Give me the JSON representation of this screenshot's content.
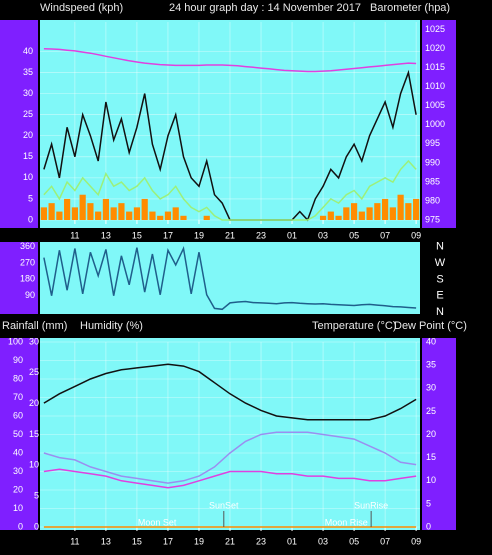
{
  "chart_data": [
    {
      "type": "line",
      "title": "24 hour graph day : 14 November 2017",
      "y_label": "Windspeed (kph)",
      "y2_label": "Barometer (hpa)",
      "x": [
        0,
        0.5,
        1,
        1.5,
        2,
        2.5,
        3,
        3.5,
        4,
        4.5,
        5,
        5.5,
        6,
        6.5,
        7,
        7.5,
        8,
        8.5,
        9,
        9.5,
        10,
        10.5,
        11,
        11.5,
        12,
        12.5,
        13,
        13.5,
        14,
        14.5,
        15,
        15.5,
        16,
        16.5,
        17,
        17.5,
        18,
        18.5,
        19,
        19.5,
        20,
        20.5,
        21,
        21.5,
        22,
        22.5,
        23,
        23.5,
        24
      ],
      "xlim": [
        -0.25,
        24.25
      ],
      "xticks": [
        {
          "value": 2,
          "label": "11"
        },
        {
          "value": 4,
          "label": "13"
        },
        {
          "value": 6,
          "label": "15"
        },
        {
          "value": 8,
          "label": "17"
        },
        {
          "value": 10,
          "label": "19"
        },
        {
          "value": 12,
          "label": "21"
        },
        {
          "value": 14,
          "label": "23"
        },
        {
          "value": 16,
          "label": "01"
        },
        {
          "value": 18,
          "label": "03"
        },
        {
          "value": 20,
          "label": "05"
        },
        {
          "value": 22,
          "label": "07"
        },
        {
          "value": 24,
          "label": "09"
        }
      ],
      "ylim": [
        0,
        47
      ],
      "yticks": [
        0,
        5,
        10,
        15,
        20,
        25,
        30,
        35,
        40
      ],
      "y2lim": [
        975,
        1027
      ],
      "y2ticks": [
        975,
        980,
        985,
        990,
        995,
        1000,
        1005,
        1010,
        1015,
        1020,
        1025
      ],
      "grid": true,
      "series": [
        {
          "type": "bar",
          "color": "#ff8c00",
          "values": [
            3,
            4,
            2,
            5,
            3,
            6,
            4,
            2,
            5,
            3,
            4,
            2,
            3,
            5,
            2,
            1,
            2,
            3,
            1,
            0,
            0,
            1,
            0,
            0,
            0,
            0,
            0,
            0,
            0,
            0,
            0,
            0,
            0,
            0,
            0,
            0,
            1,
            2,
            1,
            3,
            4,
            2,
            3,
            4,
            5,
            3,
            6,
            4,
            5
          ]
        },
        {
          "type": "line",
          "color": "#111111",
          "values": [
            12,
            18,
            10,
            22,
            15,
            25,
            20,
            14,
            28,
            19,
            24,
            16,
            22,
            30,
            18,
            12,
            20,
            25,
            15,
            10,
            8,
            14,
            6,
            4,
            0,
            0,
            0,
            0,
            0,
            0,
            0,
            0,
            0,
            2,
            0,
            5,
            8,
            12,
            10,
            15,
            18,
            14,
            20,
            24,
            28,
            22,
            30,
            35,
            25
          ]
        },
        {
          "type": "line",
          "color": "#9cf07a",
          "values": [
            6,
            8,
            5,
            9,
            7,
            10,
            8,
            6,
            11,
            8,
            9,
            7,
            8,
            10,
            7,
            5,
            6,
            8,
            5,
            3,
            2,
            3,
            1,
            0,
            0,
            0,
            0,
            0,
            0,
            0,
            0,
            0,
            0,
            0,
            0,
            1,
            3,
            5,
            4,
            6,
            7,
            5,
            8,
            9,
            10,
            9,
            12,
            14,
            12
          ]
        },
        {
          "type": "line",
          "color": "#e040e0",
          "axis": "y2",
          "values": [
            1020,
            1019.9,
            1019.8,
            1019.6,
            1019.4,
            1019.1,
            1018.8,
            1018.4,
            1018,
            1017.6,
            1017.2,
            1016.8,
            1016.5,
            1016.2,
            1016,
            1015.8,
            1015.7,
            1015.6,
            1015.6,
            1015.6,
            1015.6,
            1015.7,
            1015.7,
            1015.7,
            1015.6,
            1015.5,
            1015.3,
            1015.1,
            1014.9,
            1014.7,
            1014.5,
            1014.3,
            1014.2,
            1014.1,
            1014,
            1014,
            1014.1,
            1014.2,
            1014.4,
            1014.6,
            1014.8,
            1015,
            1015.2,
            1015.4,
            1015.6,
            1015.8,
            1016,
            1016.2,
            1016.1
          ]
        }
      ]
    },
    {
      "type": "line",
      "x": [
        0,
        0.5,
        1,
        1.5,
        2,
        2.5,
        3,
        3.5,
        4,
        4.5,
        5,
        5.5,
        6,
        6.5,
        7,
        7.5,
        8,
        8.5,
        9,
        9.5,
        10,
        10.5,
        11,
        11.5,
        12,
        12.5,
        13,
        13.5,
        14,
        14.5,
        15,
        15.5,
        16,
        16.5,
        17,
        17.5,
        18,
        18.5,
        19,
        19.5,
        20,
        20.5,
        21,
        21.5,
        22,
        22.5,
        23,
        23.5,
        24
      ],
      "xlim": [
        -0.25,
        24.25
      ],
      "ylim": [
        0,
        375
      ],
      "yticks": [
        90,
        180,
        270,
        360
      ],
      "y2lim": [
        0,
        375
      ],
      "y2ticks": [
        {
          "value": 360,
          "label": "N"
        },
        {
          "value": 270,
          "label": "W"
        },
        {
          "value": 180,
          "label": "S"
        },
        {
          "value": 90,
          "label": "E"
        },
        {
          "value": 0,
          "label": "N"
        }
      ],
      "series": [
        {
          "type": "line",
          "color": "#1f5f8b",
          "values": [
            300,
            90,
            340,
            120,
            350,
            100,
            330,
            200,
            345,
            90,
            310,
            150,
            355,
            110,
            320,
            95,
            340,
            260,
            350,
            100,
            330,
            95,
            20,
            15,
            50,
            55,
            58,
            52,
            50,
            48,
            45,
            50,
            52,
            48,
            46,
            44,
            45,
            42,
            40,
            38,
            36,
            40,
            42,
            38,
            35,
            30,
            28,
            25,
            22
          ]
        }
      ]
    },
    {
      "type": "line",
      "y3_label": "Rainfall (mm)",
      "y_label": "Humidity (%)",
      "y2_label": "Temperature (°C)",
      "y2_label_2": "Dew Point (°C)",
      "x": [
        0,
        1,
        2,
        3,
        4,
        5,
        6,
        7,
        8,
        9,
        10,
        11,
        12,
        13,
        14,
        15,
        16,
        17,
        18,
        19,
        20,
        21,
        22,
        23,
        24
      ],
      "xlim": [
        -0.25,
        24.25
      ],
      "xticks": [
        {
          "value": 2,
          "label": "11"
        },
        {
          "value": 4,
          "label": "13"
        },
        {
          "value": 6,
          "label": "15"
        },
        {
          "value": 8,
          "label": "17"
        },
        {
          "value": 10,
          "label": "19"
        },
        {
          "value": 12,
          "label": "21"
        },
        {
          "value": 14,
          "label": "23"
        },
        {
          "value": 16,
          "label": "01"
        },
        {
          "value": 18,
          "label": "03"
        },
        {
          "value": 20,
          "label": "05"
        },
        {
          "value": 22,
          "label": "07"
        },
        {
          "value": 24,
          "label": "09"
        }
      ],
      "ylim": [
        0,
        100
      ],
      "yticks": [
        0,
        10,
        20,
        30,
        40,
        50,
        60,
        70,
        80,
        90,
        100
      ],
      "y2lim": [
        0,
        40
      ],
      "y2ticks": [
        0,
        5,
        10,
        15,
        20,
        25,
        30,
        35,
        40
      ],
      "y3lim": [
        0,
        30
      ],
      "y3ticks": [
        0,
        5,
        10,
        15,
        20,
        25,
        30
      ],
      "y3tick_color": "#ff2020",
      "grid": true,
      "series": [
        {
          "type": "line",
          "color": "#ff8c00",
          "axis": "y3",
          "values": [
            0,
            0,
            0,
            0,
            0,
            0,
            0,
            0,
            0,
            0,
            0,
            0,
            0,
            0,
            0,
            0,
            0,
            0,
            0,
            0,
            0,
            0,
            0,
            0,
            0
          ]
        },
        {
          "type": "line",
          "color": "#111111",
          "values": [
            67,
            72,
            76,
            80,
            83,
            85,
            86,
            87,
            88,
            87,
            84,
            78,
            72,
            67,
            63,
            60,
            59,
            58,
            58,
            58,
            58,
            58,
            60,
            64,
            69
          ]
        },
        {
          "type": "line",
          "color": "#e040e0",
          "axis": "y2",
          "values": [
            12,
            12.5,
            12,
            11.5,
            11,
            10,
            9.5,
            9,
            8.5,
            9,
            10,
            11,
            12,
            12,
            12,
            11.5,
            11.5,
            11,
            11,
            10.5,
            10.5,
            10,
            10,
            10.5,
            11
          ]
        },
        {
          "type": "line",
          "color": "#9a8ff0",
          "axis": "y2",
          "values": [
            16,
            15,
            14.5,
            13,
            12,
            11,
            10.5,
            10,
            9.5,
            10,
            11,
            13,
            16,
            18.5,
            20,
            20.5,
            20.5,
            20.5,
            20,
            19.5,
            19,
            17.5,
            16,
            14,
            13.5
          ]
        }
      ],
      "events": [
        {
          "label": "Moon Set",
          "x": 7.3
        },
        {
          "label": "SunSet",
          "x": 11.6
        },
        {
          "label": "Moon Rise",
          "x": 19.5
        },
        {
          "label": "SunRise",
          "x": 21.1
        }
      ]
    }
  ]
}
